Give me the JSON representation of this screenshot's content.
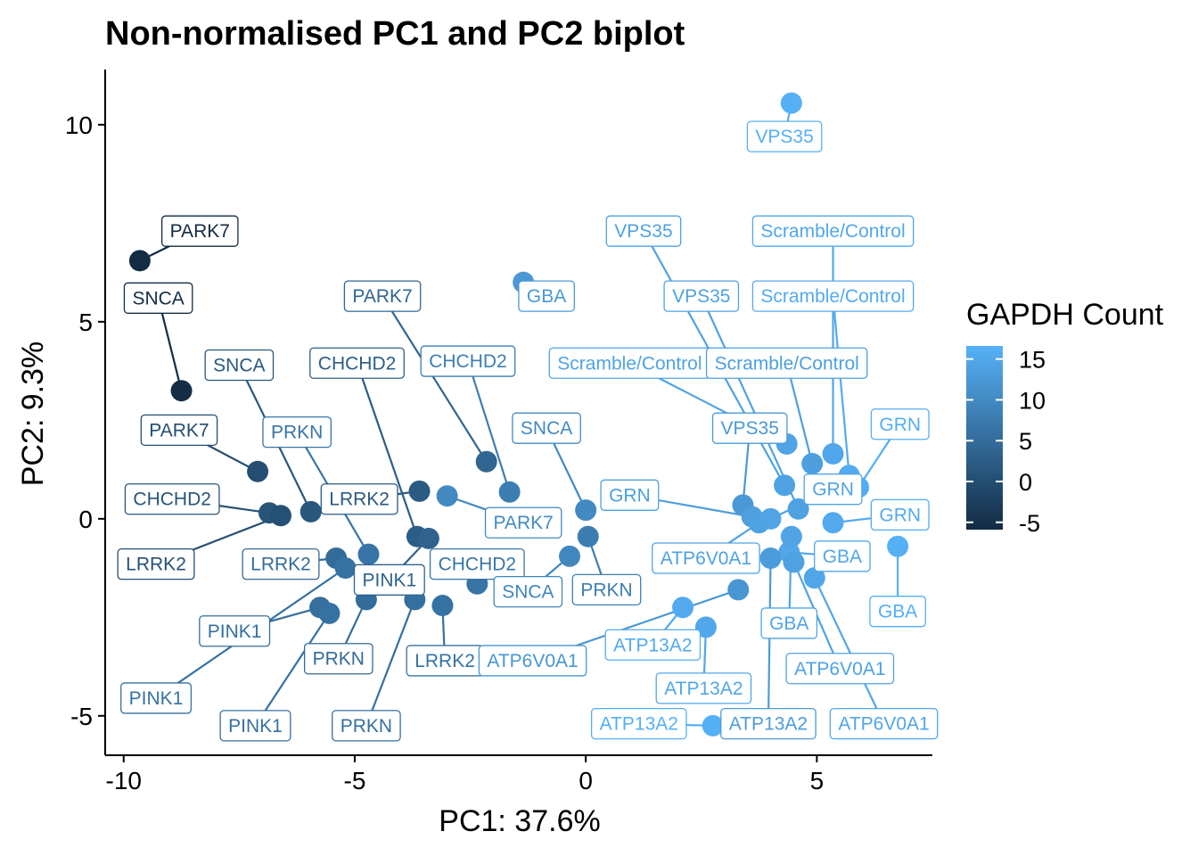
{
  "chart_data": {
    "type": "scatter",
    "title": "Non-normalised PC1 and PC2 biplot",
    "xlabel": "PC1: 37.6%",
    "ylabel": "PC2: 9.3%",
    "xlim": [
      -10.4,
      7.5
    ],
    "ylim": [
      -6.0,
      11.4
    ],
    "xticks": [
      -10,
      -5,
      0,
      5
    ],
    "xtick_labels": [
      "-10",
      "-5",
      "0",
      "5"
    ],
    "yticks": [
      -5,
      0,
      5,
      10
    ],
    "ytick_labels": [
      "-5",
      "0",
      "5",
      "10"
    ],
    "grid": false,
    "legend": {
      "title": "GAPDH Count",
      "position": "right",
      "type": "colorbar",
      "min": -5.9,
      "max": 16.6,
      "ticks": [
        15,
        10,
        5,
        0,
        -5
      ],
      "tick_labels": [
        "15",
        "10",
        "5",
        "0",
        "-5"
      ],
      "low_color": "#132b43",
      "high_color": "#56b1f7"
    },
    "points": [
      {
        "x": 4.45,
        "y": 10.55,
        "color_value": 16.4,
        "label": "VPS35",
        "lx": 4.3,
        "ly": 9.7
      },
      {
        "x": -9.65,
        "y": 6.55,
        "color_value": -5.9,
        "label": "PARK7",
        "lx": -8.35,
        "ly": 7.3
      },
      {
        "x": -8.75,
        "y": 3.25,
        "color_value": -5.6,
        "label": "SNCA",
        "lx": -9.25,
        "ly": 5.6
      },
      {
        "x": -7.1,
        "y": 1.2,
        "color_value": 0.0,
        "label": "PARK7",
        "lx": -8.8,
        "ly": 2.25
      },
      {
        "x": -6.85,
        "y": 0.15,
        "color_value": 1.0,
        "label": "CHCHD2",
        "lx": -8.95,
        "ly": 0.5
      },
      {
        "x": -6.6,
        "y": 0.08,
        "color_value": 0.5,
        "label": "LRRK2",
        "lx": -9.3,
        "ly": -1.15
      },
      {
        "x": -5.95,
        "y": 0.18,
        "color_value": 1.5,
        "label": "SNCA",
        "lx": -7.5,
        "ly": 3.9
      },
      {
        "x": -5.4,
        "y": -1.0,
        "color_value": 5.0,
        "label": "LRRK2",
        "lx": -6.6,
        "ly": -1.15
      },
      {
        "x": -5.2,
        "y": -1.25,
        "color_value": 6.0,
        "label": "PINK1",
        "lx": -9.3,
        "ly": -4.55
      },
      {
        "x": -4.7,
        "y": -0.9,
        "color_value": 6.5,
        "label": "PRKN",
        "lx": -6.25,
        "ly": 2.2
      },
      {
        "x": -5.75,
        "y": -2.25,
        "color_value": 5.5,
        "label": "PINK1",
        "lx": -7.6,
        "ly": -2.85
      },
      {
        "x": -5.55,
        "y": -2.4,
        "color_value": 5.8,
        "label": "PINK1",
        "lx": -7.15,
        "ly": -5.25
      },
      {
        "x": -4.75,
        "y": -2.05,
        "color_value": 4.8,
        "label": "PRKN",
        "lx": -5.35,
        "ly": -3.55
      },
      {
        "x": -3.6,
        "y": 0.7,
        "color_value": 2.0,
        "label": "LRRK2",
        "lx": -4.9,
        "ly": 0.5
      },
      {
        "x": -3.65,
        "y": -0.45,
        "color_value": 2.5,
        "label": "CHCHD2",
        "lx": -4.95,
        "ly": 3.95
      },
      {
        "x": -3.4,
        "y": -0.5,
        "color_value": 3.5,
        "label": "PINK1",
        "lx": -4.25,
        "ly": -1.55
      },
      {
        "x": -3.7,
        "y": -2.05,
        "color_value": 5.5,
        "label": "PRKN",
        "lx": -4.75,
        "ly": -5.25
      },
      {
        "x": -3.1,
        "y": -2.2,
        "color_value": 6.0,
        "label": "LRRK2",
        "lx": -3.05,
        "ly": -3.6
      },
      {
        "x": -2.15,
        "y": 1.45,
        "color_value": 4.0,
        "label": "PARK7",
        "lx": -4.4,
        "ly": 5.65
      },
      {
        "x": -1.65,
        "y": 0.68,
        "color_value": 8.0,
        "label": "CHCHD2",
        "lx": -2.55,
        "ly": 4.0
      },
      {
        "x": -3.0,
        "y": 0.58,
        "color_value": 10.0,
        "label": "PARK7",
        "lx": -1.35,
        "ly": -0.1
      },
      {
        "x": -2.35,
        "y": -1.65,
        "color_value": 6.5,
        "label": "CHCHD2",
        "lx": -2.35,
        "ly": -1.15
      },
      {
        "x": 0.0,
        "y": 0.22,
        "color_value": 10.0,
        "label": "SNCA",
        "lx": -0.85,
        "ly": 2.3
      },
      {
        "x": 0.05,
        "y": -0.45,
        "color_value": 8.0,
        "label": "PRKN",
        "lx": 0.45,
        "ly": -1.8
      },
      {
        "x": -0.35,
        "y": -0.95,
        "color_value": 9.5,
        "label": "SNCA",
        "lx": -1.25,
        "ly": -1.85
      },
      {
        "x": -1.35,
        "y": 6.0,
        "color_value": 12.5,
        "label": "GBA",
        "lx": -0.85,
        "ly": 5.65
      },
      {
        "x": 2.1,
        "y": -2.25,
        "color_value": 15.5,
        "label": "ATP13A2",
        "lx": 1.45,
        "ly": -3.2
      },
      {
        "x": 2.6,
        "y": -2.75,
        "color_value": 15.0,
        "label": "ATP13A2",
        "lx": 2.55,
        "ly": -4.3
      },
      {
        "x": 2.75,
        "y": -5.25,
        "color_value": 16.4,
        "label": "ATP13A2",
        "lx": 1.15,
        "ly": -5.2
      },
      {
        "x": 3.3,
        "y": -1.8,
        "color_value": 12.0,
        "label": "ATP6V0A1",
        "lx": -1.15,
        "ly": -3.6
      },
      {
        "x": 4.35,
        "y": 1.9,
        "color_value": 14.5,
        "label": "Scramble/Control",
        "lx": 0.95,
        "ly": 3.95
      },
      {
        "x": 4.3,
        "y": 0.85,
        "color_value": 14.0,
        "label": "VPS35",
        "lx": 1.25,
        "ly": 7.3
      },
      {
        "x": 4.9,
        "y": 1.4,
        "color_value": 13.5,
        "label": "Scramble/Control",
        "lx": 4.35,
        "ly": 3.95
      },
      {
        "x": 5.35,
        "y": 1.65,
        "color_value": 15.0,
        "label": "Scramble/Control",
        "lx": 5.35,
        "ly": 7.3
      },
      {
        "x": 5.7,
        "y": 1.1,
        "color_value": 15.5,
        "label": "Scramble/Control",
        "lx": 5.35,
        "ly": 5.65
      },
      {
        "x": 4.6,
        "y": 0.25,
        "color_value": 14.0,
        "label": "VPS35",
        "lx": 2.5,
        "ly": 5.65
      },
      {
        "x": 3.4,
        "y": 0.35,
        "color_value": 12.5,
        "label": "VPS35",
        "lx": 3.55,
        "ly": 2.3
      },
      {
        "x": 3.6,
        "y": 0.05,
        "color_value": 13.5,
        "label": "GRN",
        "lx": 0.95,
        "ly": 0.6
      },
      {
        "x": 3.75,
        "y": -0.1,
        "color_value": 14.0,
        "label": "ATP6V0A1",
        "lx": 2.6,
        "ly": -1.0
      },
      {
        "x": 4.0,
        "y": 0.0,
        "color_value": 14.5,
        "label": "GRN",
        "lx": 5.35,
        "ly": 0.75
      },
      {
        "x": 5.9,
        "y": 0.8,
        "color_value": 16.0,
        "label": "GRN",
        "lx": 6.8,
        "ly": 2.4
      },
      {
        "x": 5.35,
        "y": -0.1,
        "color_value": 15.5,
        "label": "GRN",
        "lx": 6.8,
        "ly": 0.1
      },
      {
        "x": 4.4,
        "y": -0.85,
        "color_value": 15.0,
        "label": "GBA",
        "lx": 5.55,
        "ly": -0.95
      },
      {
        "x": 4.45,
        "y": -0.45,
        "color_value": 14.5,
        "label": "GBA",
        "lx": 4.4,
        "ly": -2.65
      },
      {
        "x": 4.5,
        "y": -1.1,
        "color_value": 14.0,
        "label": "ATP6V0A1",
        "lx": 5.5,
        "ly": -3.8
      },
      {
        "x": 4.95,
        "y": -1.5,
        "color_value": 14.8,
        "label": "ATP6V0A1",
        "lx": 6.45,
        "ly": -5.2
      },
      {
        "x": 4.0,
        "y": -1.0,
        "color_value": 13.0,
        "label": "ATP13A2",
        "lx": 3.95,
        "ly": -5.2
      },
      {
        "x": 6.75,
        "y": -0.7,
        "color_value": 16.4,
        "label": "GBA",
        "lx": 6.75,
        "ly": -2.35
      }
    ]
  }
}
